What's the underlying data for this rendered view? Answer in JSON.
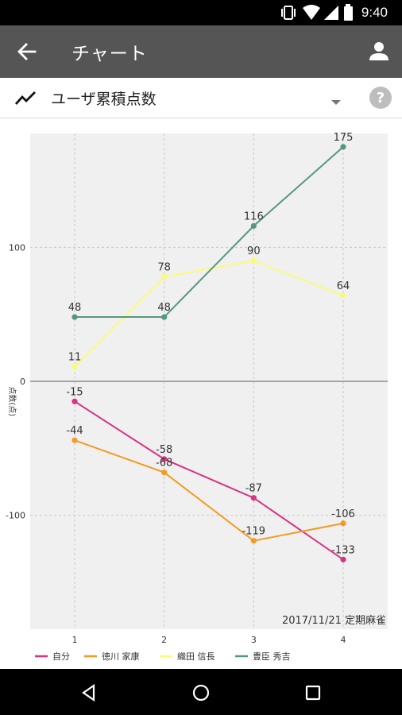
{
  "status_bar": {
    "time": "9:40"
  },
  "app_bar": {
    "title": "チャート"
  },
  "selector": {
    "label": "ユーザ累積点数"
  },
  "chart_data": {
    "type": "line",
    "x": [
      1,
      2,
      3,
      4
    ],
    "xticks": [
      "1",
      "2",
      "3",
      "4"
    ],
    "ylabel": "点数(点)",
    "ylim": [
      -185,
      185
    ],
    "yticks": [
      100,
      0,
      -100
    ],
    "grid": true,
    "annotation": "2017/11/21 定期麻雀",
    "legend_position": "bottom-left",
    "series": [
      {
        "name": "自分",
        "color": "#d63384",
        "values": [
          -15,
          -58,
          -87,
          -133
        ]
      },
      {
        "name": "徳川 家康",
        "color": "#f59a23",
        "values": [
          -44,
          -68,
          -119,
          -106
        ]
      },
      {
        "name": "織田 信長",
        "color": "#fafa7a",
        "values": [
          11,
          78,
          90,
          64
        ]
      },
      {
        "name": "豊臣 秀吉",
        "color": "#55977f",
        "values": [
          48,
          48,
          116,
          175
        ]
      }
    ]
  }
}
